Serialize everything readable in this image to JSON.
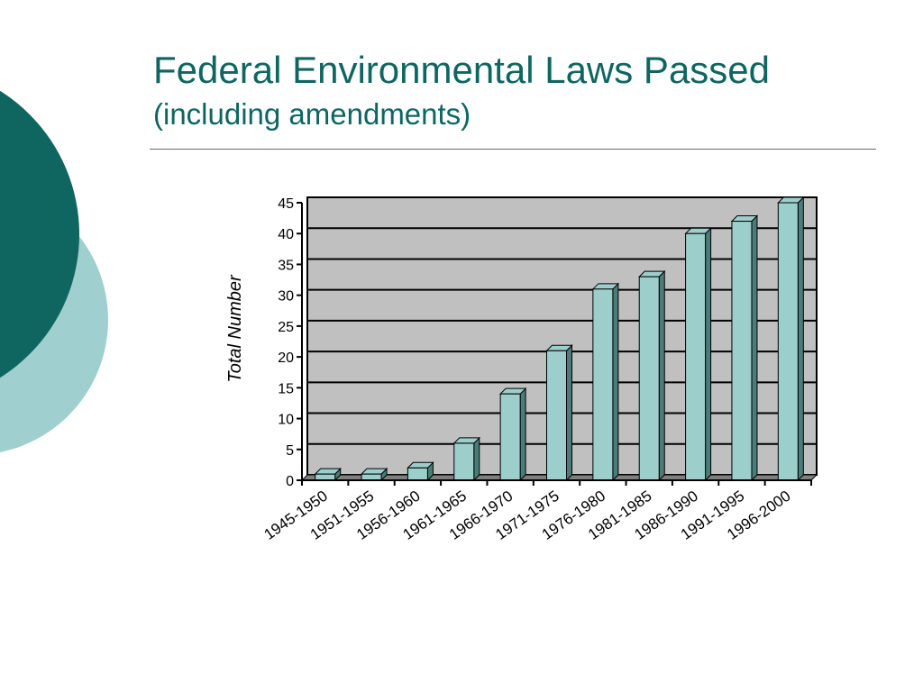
{
  "slide": {
    "title": "Federal Environmental Laws Passed",
    "subtitle": "(including amendments)"
  },
  "theme": {
    "title_color": "#0f6660",
    "circle_dark": "#0f6660",
    "circle_light": "#9fcfcf",
    "bar_front": "#9ccfcc",
    "bar_side": "#4a7c79",
    "plot_bg": "#c0c0c0"
  },
  "chart_data": {
    "type": "bar",
    "style": "3d-column",
    "ylabel": "Total Number",
    "xlabel": "",
    "ylim": [
      0,
      45
    ],
    "ytick_step": 5,
    "yticks": [
      "0",
      "5",
      "10",
      "15",
      "20",
      "25",
      "30",
      "35",
      "40",
      "45"
    ],
    "grid": "horizontal",
    "categories": [
      "1945-1950",
      "1951-1955",
      "1956-1960",
      "1961-1965",
      "1966-1970",
      "1971-1975",
      "1976-1980",
      "1981-1985",
      "1986-1990",
      "1991-1995",
      "1996-2000"
    ],
    "values": [
      1,
      1,
      2,
      6,
      14,
      21,
      31,
      33,
      40,
      42,
      45
    ]
  }
}
